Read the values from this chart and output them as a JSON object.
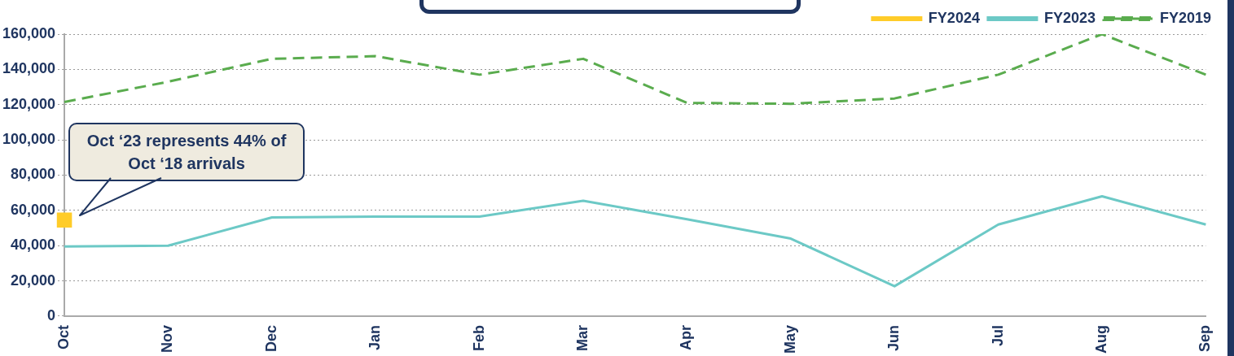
{
  "chart_data": {
    "type": "line",
    "categories": [
      "Oct",
      "Nov",
      "Dec",
      "Jan",
      "Feb",
      "Mar",
      "Apr",
      "May",
      "Jun",
      "Jul",
      "Aug",
      "Sep"
    ],
    "series": [
      {
        "name": "FY2024",
        "color": "#ffcc29",
        "marker": "square",
        "line_style": "solid",
        "values": [
          54500,
          null,
          null,
          null,
          null,
          null,
          null,
          null,
          null,
          null,
          null,
          null
        ]
      },
      {
        "name": "FY2023",
        "color": "#6cc9c6",
        "marker": "none",
        "line_style": "solid",
        "values": [
          39500,
          40000,
          56000,
          56500,
          56500,
          65500,
          55000,
          44000,
          17000,
          52000,
          68000,
          52000
        ]
      },
      {
        "name": "FY2019",
        "color": "#5aac4e",
        "marker": "none",
        "line_style": "dashed",
        "values": [
          121500,
          133000,
          146000,
          147500,
          137000,
          146000,
          121000,
          120500,
          123500,
          137000,
          160000,
          137000
        ]
      }
    ],
    "ylim": [
      0,
      160000
    ],
    "yticks": [
      0,
      {
        "value": 20000,
        "label": "20,000"
      },
      {
        "value": 40000,
        "label": "40,000"
      },
      {
        "value": 60000,
        "label": "60,000"
      },
      {
        "value": 80000,
        "label": "80,000"
      },
      {
        "value": 100000,
        "label": "100,000"
      },
      {
        "value": 120000,
        "label": "120,000"
      },
      {
        "value": 140000,
        "label": "140,000"
      },
      {
        "value": 160000,
        "label": "160,000"
      }
    ],
    "grid": "y",
    "legend": "top right",
    "annotations": [
      "Oct ‘23 represents 44% of Oct ‘18 arrivals"
    ]
  }
}
